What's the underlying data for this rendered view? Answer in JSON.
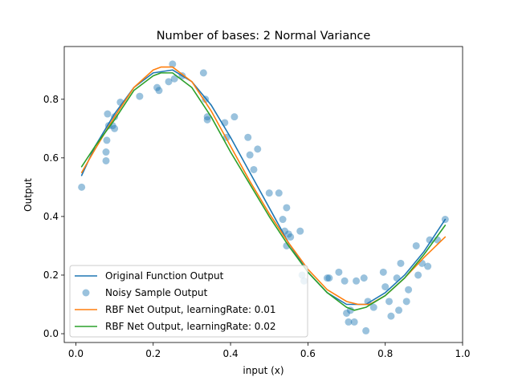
{
  "chart_data": {
    "type": "line",
    "title": "Number of bases: 2 Normal Variance",
    "xlabel": "input (x)",
    "ylabel": "Output",
    "xlim": [
      -0.03,
      1.0
    ],
    "ylim": [
      -0.03,
      0.98
    ],
    "xticks": [
      0.0,
      0.2,
      0.4,
      0.6,
      0.8,
      1.0
    ],
    "xtick_labels": [
      "0.0",
      "0.2",
      "0.4",
      "0.6",
      "0.8",
      "1.0"
    ],
    "yticks": [
      0.0,
      0.2,
      0.4,
      0.6,
      0.8
    ],
    "ytick_labels": [
      "0.0",
      "0.2",
      "0.4",
      "0.6",
      "0.8"
    ],
    "grid": false,
    "legend_position": "lower-left",
    "legend": [
      "Original Function Output",
      "Noisy Sample Output",
      "RBF Net Output, learningRate: 0.01",
      "RBF Net Output, learningRate: 0.02"
    ],
    "series": [
      {
        "name": "Original Function Output",
        "kind": "line",
        "color": "#1f77b4",
        "x": [
          0.015,
          0.05,
          0.1,
          0.15,
          0.2,
          0.25,
          0.3,
          0.35,
          0.4,
          0.45,
          0.5,
          0.55,
          0.6,
          0.65,
          0.7,
          0.75,
          0.8,
          0.85,
          0.9,
          0.955
        ],
        "y": [
          0.54,
          0.64,
          0.75,
          0.84,
          0.89,
          0.9,
          0.86,
          0.78,
          0.67,
          0.55,
          0.43,
          0.31,
          0.21,
          0.14,
          0.1,
          0.1,
          0.14,
          0.2,
          0.28,
          0.39
        ]
      },
      {
        "name": "Noisy Sample Output",
        "kind": "scatter",
        "color": "#1f77b4",
        "x": [
          0.015,
          0.078,
          0.078,
          0.08,
          0.082,
          0.085,
          0.095,
          0.1,
          0.1,
          0.115,
          0.165,
          0.21,
          0.215,
          0.24,
          0.25,
          0.255,
          0.275,
          0.33,
          0.335,
          0.34,
          0.34,
          0.385,
          0.39,
          0.41,
          0.445,
          0.45,
          0.46,
          0.47,
          0.5,
          0.525,
          0.535,
          0.54,
          0.545,
          0.545,
          0.55,
          0.555,
          0.58,
          0.585,
          0.59,
          0.65,
          0.655,
          0.68,
          0.695,
          0.7,
          0.705,
          0.71,
          0.72,
          0.725,
          0.745,
          0.75,
          0.755,
          0.77,
          0.795,
          0.8,
          0.81,
          0.815,
          0.83,
          0.835,
          0.84,
          0.855,
          0.86,
          0.88,
          0.885,
          0.895,
          0.91,
          0.915,
          0.935,
          0.955
        ],
        "y": [
          0.5,
          0.59,
          0.62,
          0.66,
          0.75,
          0.71,
          0.71,
          0.7,
          0.74,
          0.79,
          0.81,
          0.84,
          0.83,
          0.86,
          0.92,
          0.87,
          0.88,
          0.89,
          0.8,
          0.74,
          0.73,
          0.72,
          0.67,
          0.74,
          0.67,
          0.61,
          0.56,
          0.63,
          0.48,
          0.48,
          0.39,
          0.35,
          0.3,
          0.43,
          0.34,
          0.33,
          0.35,
          0.2,
          0.18,
          0.19,
          0.19,
          0.21,
          0.18,
          0.07,
          0.04,
          0.08,
          0.04,
          0.18,
          0.19,
          0.01,
          0.11,
          0.09,
          0.21,
          0.16,
          0.11,
          0.06,
          0.19,
          0.08,
          0.24,
          0.11,
          0.15,
          0.3,
          0.2,
          0.24,
          0.23,
          0.32,
          0.32,
          0.39
        ]
      },
      {
        "name": "RBF Net Output, learningRate: 0.01",
        "kind": "line",
        "color": "#ff7f0e",
        "x": [
          0.015,
          0.05,
          0.1,
          0.15,
          0.2,
          0.22,
          0.25,
          0.3,
          0.35,
          0.4,
          0.45,
          0.5,
          0.55,
          0.6,
          0.65,
          0.7,
          0.73,
          0.76,
          0.8,
          0.85,
          0.9,
          0.955
        ],
        "y": [
          0.55,
          0.63,
          0.74,
          0.84,
          0.9,
          0.91,
          0.91,
          0.86,
          0.76,
          0.64,
          0.52,
          0.41,
          0.31,
          0.22,
          0.15,
          0.11,
          0.1,
          0.1,
          0.13,
          0.19,
          0.26,
          0.33
        ]
      },
      {
        "name": "RBF Net Output, learningRate: 0.02",
        "kind": "line",
        "color": "#2ca02c",
        "x": [
          0.015,
          0.05,
          0.1,
          0.15,
          0.2,
          0.22,
          0.25,
          0.3,
          0.35,
          0.4,
          0.45,
          0.5,
          0.55,
          0.6,
          0.65,
          0.7,
          0.72,
          0.75,
          0.8,
          0.85,
          0.9,
          0.955
        ],
        "y": [
          0.57,
          0.64,
          0.73,
          0.83,
          0.88,
          0.89,
          0.89,
          0.84,
          0.74,
          0.62,
          0.51,
          0.4,
          0.3,
          0.21,
          0.14,
          0.09,
          0.08,
          0.09,
          0.13,
          0.19,
          0.27,
          0.37
        ]
      }
    ]
  }
}
